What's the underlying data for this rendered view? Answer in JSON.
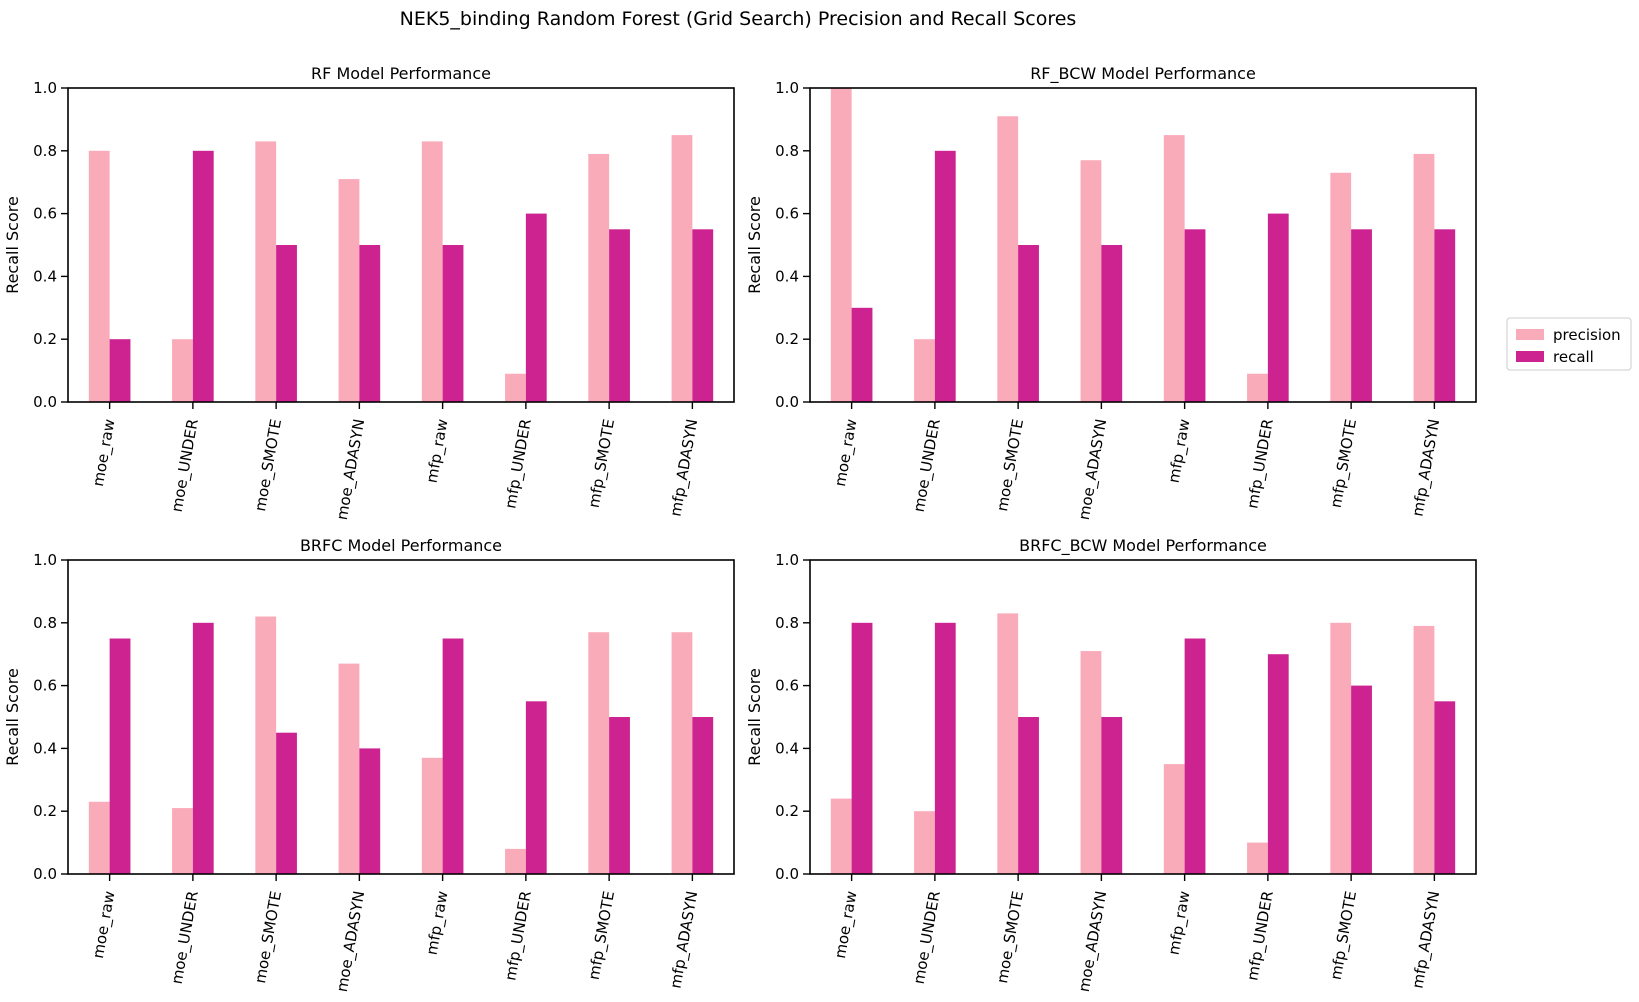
{
  "figure": {
    "suptitle": "NEK5_binding Random Forest (Grid Search) Precision and Recall Scores"
  },
  "legend": {
    "placement": "center-right",
    "entries": [
      {
        "label": "precision",
        "color": "#FAABB9"
      },
      {
        "label": "recall",
        "color": "#CD2391"
      }
    ]
  },
  "chart_data": [
    {
      "type": "bar",
      "title": "RF Model Performance",
      "xlabel": "",
      "ylabel": "Recall Score",
      "ylim": [
        0,
        1.0
      ],
      "yticks": [
        "0.0",
        "0.2",
        "0.4",
        "0.6",
        "0.8",
        "1.0"
      ],
      "categories": [
        "moe_raw",
        "moe_UNDER",
        "moe_SMOTE",
        "moe_ADASYN",
        "mfp_raw",
        "mfp_UNDER",
        "mfp_SMOTE",
        "mfp_ADASYN"
      ],
      "series": [
        {
          "name": "precision",
          "values": [
            0.8,
            0.2,
            0.83,
            0.71,
            0.83,
            0.09,
            0.79,
            0.85
          ]
        },
        {
          "name": "recall",
          "values": [
            0.2,
            0.8,
            0.5,
            0.5,
            0.5,
            0.6,
            0.55,
            0.55
          ]
        }
      ]
    },
    {
      "type": "bar",
      "title": "RF_BCW Model Performance",
      "xlabel": "",
      "ylabel": "Recall Score",
      "ylim": [
        0,
        1.0
      ],
      "yticks": [
        "0.0",
        "0.2",
        "0.4",
        "0.6",
        "0.8",
        "1.0"
      ],
      "categories": [
        "moe_raw",
        "moe_UNDER",
        "moe_SMOTE",
        "moe_ADASYN",
        "mfp_raw",
        "mfp_UNDER",
        "mfp_SMOTE",
        "mfp_ADASYN"
      ],
      "series": [
        {
          "name": "precision",
          "values": [
            1.0,
            0.2,
            0.91,
            0.77,
            0.85,
            0.09,
            0.73,
            0.79
          ]
        },
        {
          "name": "recall",
          "values": [
            0.3,
            0.8,
            0.5,
            0.5,
            0.55,
            0.6,
            0.55,
            0.55
          ]
        }
      ]
    },
    {
      "type": "bar",
      "title": "BRFC Model Performance",
      "xlabel": "",
      "ylabel": "Recall Score",
      "ylim": [
        0,
        1.0
      ],
      "yticks": [
        "0.0",
        "0.2",
        "0.4",
        "0.6",
        "0.8",
        "1.0"
      ],
      "categories": [
        "moe_raw",
        "moe_UNDER",
        "moe_SMOTE",
        "moe_ADASYN",
        "mfp_raw",
        "mfp_UNDER",
        "mfp_SMOTE",
        "mfp_ADASYN"
      ],
      "series": [
        {
          "name": "precision",
          "values": [
            0.23,
            0.21,
            0.82,
            0.67,
            0.37,
            0.08,
            0.77,
            0.77
          ]
        },
        {
          "name": "recall",
          "values": [
            0.75,
            0.8,
            0.45,
            0.4,
            0.75,
            0.55,
            0.5,
            0.5
          ]
        }
      ]
    },
    {
      "type": "bar",
      "title": "BRFC_BCW Model Performance",
      "xlabel": "",
      "ylabel": "Recall Score",
      "ylim": [
        0,
        1.0
      ],
      "yticks": [
        "0.0",
        "0.2",
        "0.4",
        "0.6",
        "0.8",
        "1.0"
      ],
      "categories": [
        "moe_raw",
        "moe_UNDER",
        "moe_SMOTE",
        "moe_ADASYN",
        "mfp_raw",
        "mfp_UNDER",
        "mfp_SMOTE",
        "mfp_ADASYN"
      ],
      "series": [
        {
          "name": "precision",
          "values": [
            0.24,
            0.2,
            0.83,
            0.71,
            0.35,
            0.1,
            0.8,
            0.79
          ]
        },
        {
          "name": "recall",
          "values": [
            0.8,
            0.8,
            0.5,
            0.5,
            0.75,
            0.7,
            0.6,
            0.55
          ]
        }
      ]
    }
  ]
}
